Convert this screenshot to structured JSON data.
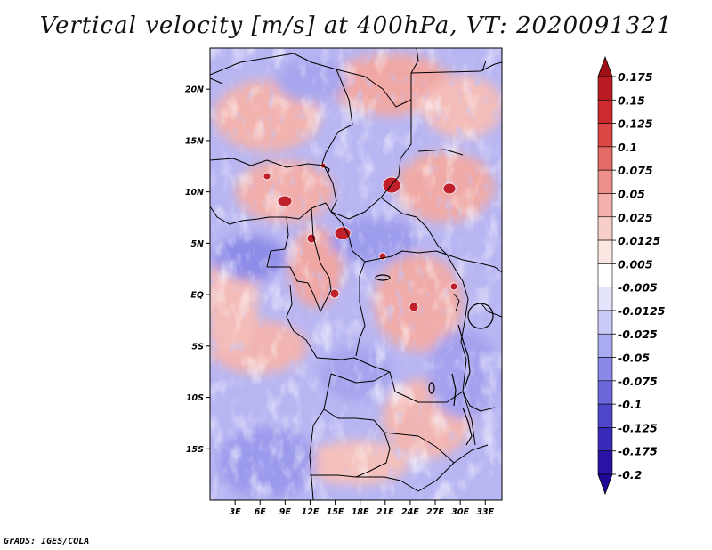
{
  "title": "Vertical velocity [m/s] at 400hPa, VT: 2020091321",
  "credit": "GrADS: IGES/COLA",
  "chart_data": {
    "type": "heatmap",
    "title": "Vertical velocity [m/s] at 400hPa, VT: 2020091321",
    "variable": "Vertical velocity",
    "units": "m/s",
    "level": "400hPa",
    "valid_time": "2020091321",
    "lon_range": [
      0,
      35
    ],
    "lat_range": [
      -20,
      24
    ],
    "x_ticks": [
      {
        "value": 3,
        "label": "3E"
      },
      {
        "value": 6,
        "label": "6E"
      },
      {
        "value": 9,
        "label": "9E"
      },
      {
        "value": 12,
        "label": "12E"
      },
      {
        "value": 15,
        "label": "15E"
      },
      {
        "value": 18,
        "label": "18E"
      },
      {
        "value": 21,
        "label": "21E"
      },
      {
        "value": 24,
        "label": "24E"
      },
      {
        "value": 27,
        "label": "27E"
      },
      {
        "value": 30,
        "label": "30E"
      },
      {
        "value": 33,
        "label": "33E"
      }
    ],
    "y_ticks": [
      {
        "value": 20,
        "label": "20N"
      },
      {
        "value": 15,
        "label": "15N"
      },
      {
        "value": 10,
        "label": "10N"
      },
      {
        "value": 5,
        "label": "5N"
      },
      {
        "value": 0,
        "label": "EQ"
      },
      {
        "value": -5,
        "label": "5S"
      },
      {
        "value": -10,
        "label": "10S"
      },
      {
        "value": -15,
        "label": "15S"
      }
    ],
    "colorbar": {
      "labels": [
        "0.175",
        "0.15",
        "0.125",
        "0.1",
        "0.075",
        "0.05",
        "0.025",
        "0.0125",
        "0.005",
        "-0.005",
        "-0.0125",
        "-0.025",
        "-0.05",
        "-0.075",
        "-0.1",
        "-0.125",
        "-0.175",
        "-0.2"
      ],
      "colors": [
        "#a01016",
        "#b81c22",
        "#cc2a2e",
        "#dc4644",
        "#e46a66",
        "#ec8e8a",
        "#f4b0ac",
        "#f8cec8",
        "#fce6e2",
        "#ffffff",
        "#e4e4fc",
        "#cacaf6",
        "#aaaaf0",
        "#8a88e8",
        "#6c68dc",
        "#5046cc",
        "#3a2aba",
        "#2a12a6",
        "#1e0896"
      ]
    }
  }
}
